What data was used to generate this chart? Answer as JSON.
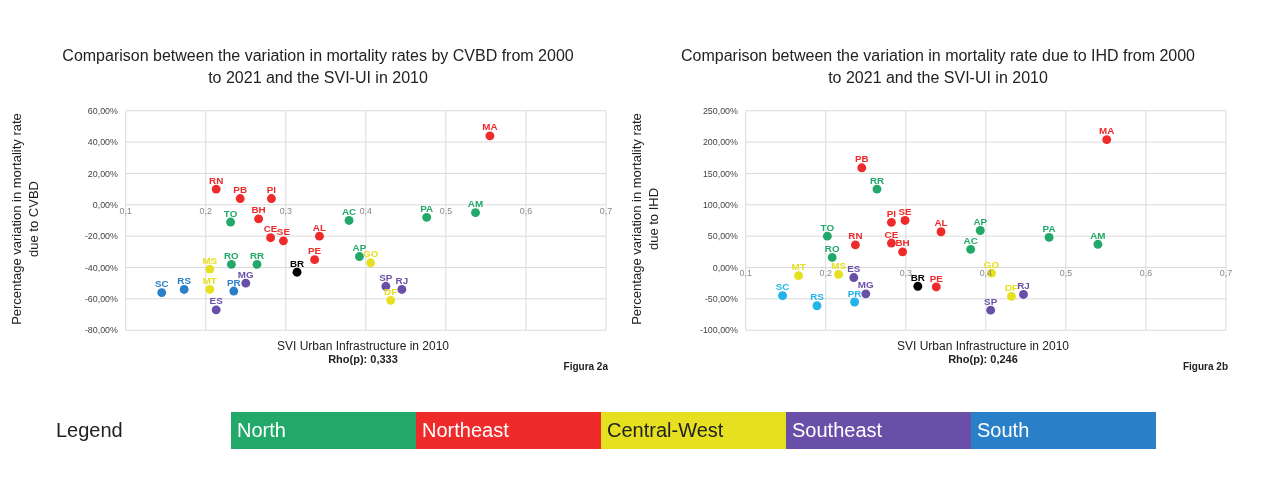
{
  "chart_data": [
    {
      "type": "scatter",
      "title": "Comparison between the variation in mortality rates by CVBD from 2000 to 2021 and the SVI-UI in 2010",
      "xlabel": "SVI Urban Infrastructure in 2010",
      "ylabel": "Percentage variation in mortality rate due to CVBD",
      "annotations": [
        "Rho(p): 0,333",
        "Figura 2a"
      ],
      "xlim": [
        0.1,
        0.7
      ],
      "xticks": [
        {
          "value": 0.1,
          "label": "0,1"
        },
        {
          "value": 0.2,
          "label": "0,2"
        },
        {
          "value": 0.3,
          "label": "0,3"
        },
        {
          "value": 0.4,
          "label": "0,4"
        },
        {
          "value": 0.5,
          "label": "0,5"
        },
        {
          "value": 0.6,
          "label": "0,6"
        },
        {
          "value": 0.7,
          "label": "0,7"
        }
      ],
      "ylim": [
        -80,
        60
      ],
      "yticks": [
        {
          "value": -80,
          "label": "-80,00%"
        },
        {
          "value": -60,
          "label": "-60,00%"
        },
        {
          "value": -40,
          "label": "-40,00%"
        },
        {
          "value": -20,
          "label": "-20,00%"
        },
        {
          "value": 0,
          "label": "0,00%"
        },
        {
          "value": 20,
          "label": "20,00%"
        },
        {
          "value": 40,
          "label": "40,00%"
        },
        {
          "value": 60,
          "label": "60,00%"
        }
      ],
      "grid": true,
      "legend": "bottom",
      "legend_title": "Legend",
      "series": [
        {
          "name": "North",
          "color": "#22a96a",
          "x": [
            0.231,
            0.379,
            0.476,
            0.537,
            0.392,
            0.232,
            0.264
          ],
          "values": [
            -11,
            -10,
            -8,
            -5,
            -33,
            -38,
            -38
          ],
          "value_labels": [
            "TO",
            "AC",
            "PA",
            "AM",
            "AP",
            "RO",
            "RR"
          ]
        },
        {
          "name": "Northeast",
          "color": "#ee2a2a",
          "x": [
            0.555,
            0.213,
            0.243,
            0.282,
            0.266,
            0.281,
            0.297,
            0.342,
            0.336
          ],
          "values": [
            44,
            10,
            4,
            4,
            -9,
            -21,
            -23,
            -20,
            -35
          ],
          "value_labels": [
            "MA",
            "RN",
            "PB",
            "PI",
            "BH",
            "CE",
            "SE",
            "AL",
            "PE"
          ]
        },
        {
          "name": "Central-West",
          "color": "#e6e020",
          "x": [
            0.406,
            0.205,
            0.205,
            0.431
          ],
          "values": [
            -37,
            -41,
            -54,
            -61
          ],
          "value_labels": [
            "GO",
            "MS",
            "MT",
            "DF"
          ]
        },
        {
          "name": "Southeast",
          "color": "#6a4fa8",
          "x": [
            0.25,
            0.425,
            0.445,
            0.213
          ],
          "values": [
            -50,
            -52,
            -54,
            -67
          ],
          "value_labels": [
            "MG",
            "SP",
            "RJ",
            "ES"
          ]
        },
        {
          "name": "South",
          "color": "#2a80c8",
          "x": [
            0.145,
            0.173,
            0.235
          ],
          "values": [
            -56,
            -54,
            -55
          ],
          "value_labels": [
            "SC",
            "RS",
            "PR"
          ]
        },
        {
          "color": "#000000",
          "x": [
            0.314
          ],
          "values": [
            -43
          ],
          "value_labels": [
            "BR"
          ]
        }
      ]
    },
    {
      "type": "scatter",
      "title": "Comparison between the variation in mortality rate due to IHD from 2000 to 2021 and the SVI-UI in 2010",
      "xlabel": "SVI Urban Infrastructure in 2010",
      "ylabel": "Percentage variation in mortality rate due to IHD",
      "annotations": [
        "Rho(p): 0,246",
        "Figura 2b"
      ],
      "xlim": [
        0.1,
        0.7
      ],
      "xticks": [
        {
          "value": 0.1,
          "label": "0,1"
        },
        {
          "value": 0.2,
          "label": "0,2"
        },
        {
          "value": 0.3,
          "label": "0,3"
        },
        {
          "value": 0.4,
          "label": "0,4"
        },
        {
          "value": 0.5,
          "label": "0,5"
        },
        {
          "value": 0.6,
          "label": "0,6"
        },
        {
          "value": 0.7,
          "label": "0,7"
        }
      ],
      "ylim": [
        -100,
        250
      ],
      "yticks": [
        {
          "value": -100,
          "label": "-100,00%"
        },
        {
          "value": -50,
          "label": "-50,00%"
        },
        {
          "value": 0,
          "label": "0,00%"
        },
        {
          "value": 50,
          "label": "50,00%"
        },
        {
          "value": 100,
          "label": "100,00%"
        },
        {
          "value": 150,
          "label": "150,00%"
        },
        {
          "value": 200,
          "label": "200,00%"
        },
        {
          "value": 250,
          "label": "250,00%"
        }
      ],
      "grid": true,
      "series": [
        {
          "color": "#22a96a",
          "x": [
            0.264,
            0.393,
            0.202,
            0.479,
            0.54,
            0.381,
            0.208
          ],
          "values": [
            125,
            59,
            50,
            48,
            37,
            29,
            16
          ],
          "value_labels": [
            "RR",
            "AP",
            "TO",
            "PA",
            "AM",
            "AC",
            "RO"
          ]
        },
        {
          "color": "#ee2a2a",
          "x": [
            0.551,
            0.245,
            0.282,
            0.299,
            0.344,
            0.237,
            0.282,
            0.296,
            0.338
          ],
          "values": [
            204,
            159,
            72,
            75,
            57,
            36,
            39,
            25,
            -31
          ],
          "value_labels": [
            "MA",
            "PB",
            "PI",
            "SE",
            "AL",
            "RN",
            "CE",
            "BH",
            "PE"
          ]
        },
        {
          "color": "#e6e020",
          "x": [
            0.166,
            0.216,
            0.407,
            0.432
          ],
          "values": [
            -13,
            -11,
            -9,
            -46
          ],
          "value_labels": [
            "MT",
            "MS",
            "GO",
            "DF"
          ]
        },
        {
          "color": "#6a4fa8",
          "x": [
            0.235,
            0.25,
            0.447,
            0.406
          ],
          "values": [
            -16,
            -42,
            -43,
            -68
          ],
          "value_labels": [
            "ES",
            "MG",
            "RJ",
            "SP"
          ]
        },
        {
          "color": "#22b4ea",
          "x": [
            0.146,
            0.189,
            0.236
          ],
          "values": [
            -45,
            -61,
            -55
          ],
          "value_labels": [
            "SC",
            "RS",
            "PR"
          ]
        },
        {
          "color": "#000000",
          "x": [
            0.315
          ],
          "values": [
            -30
          ],
          "value_labels": [
            "BR"
          ]
        }
      ]
    }
  ]
}
